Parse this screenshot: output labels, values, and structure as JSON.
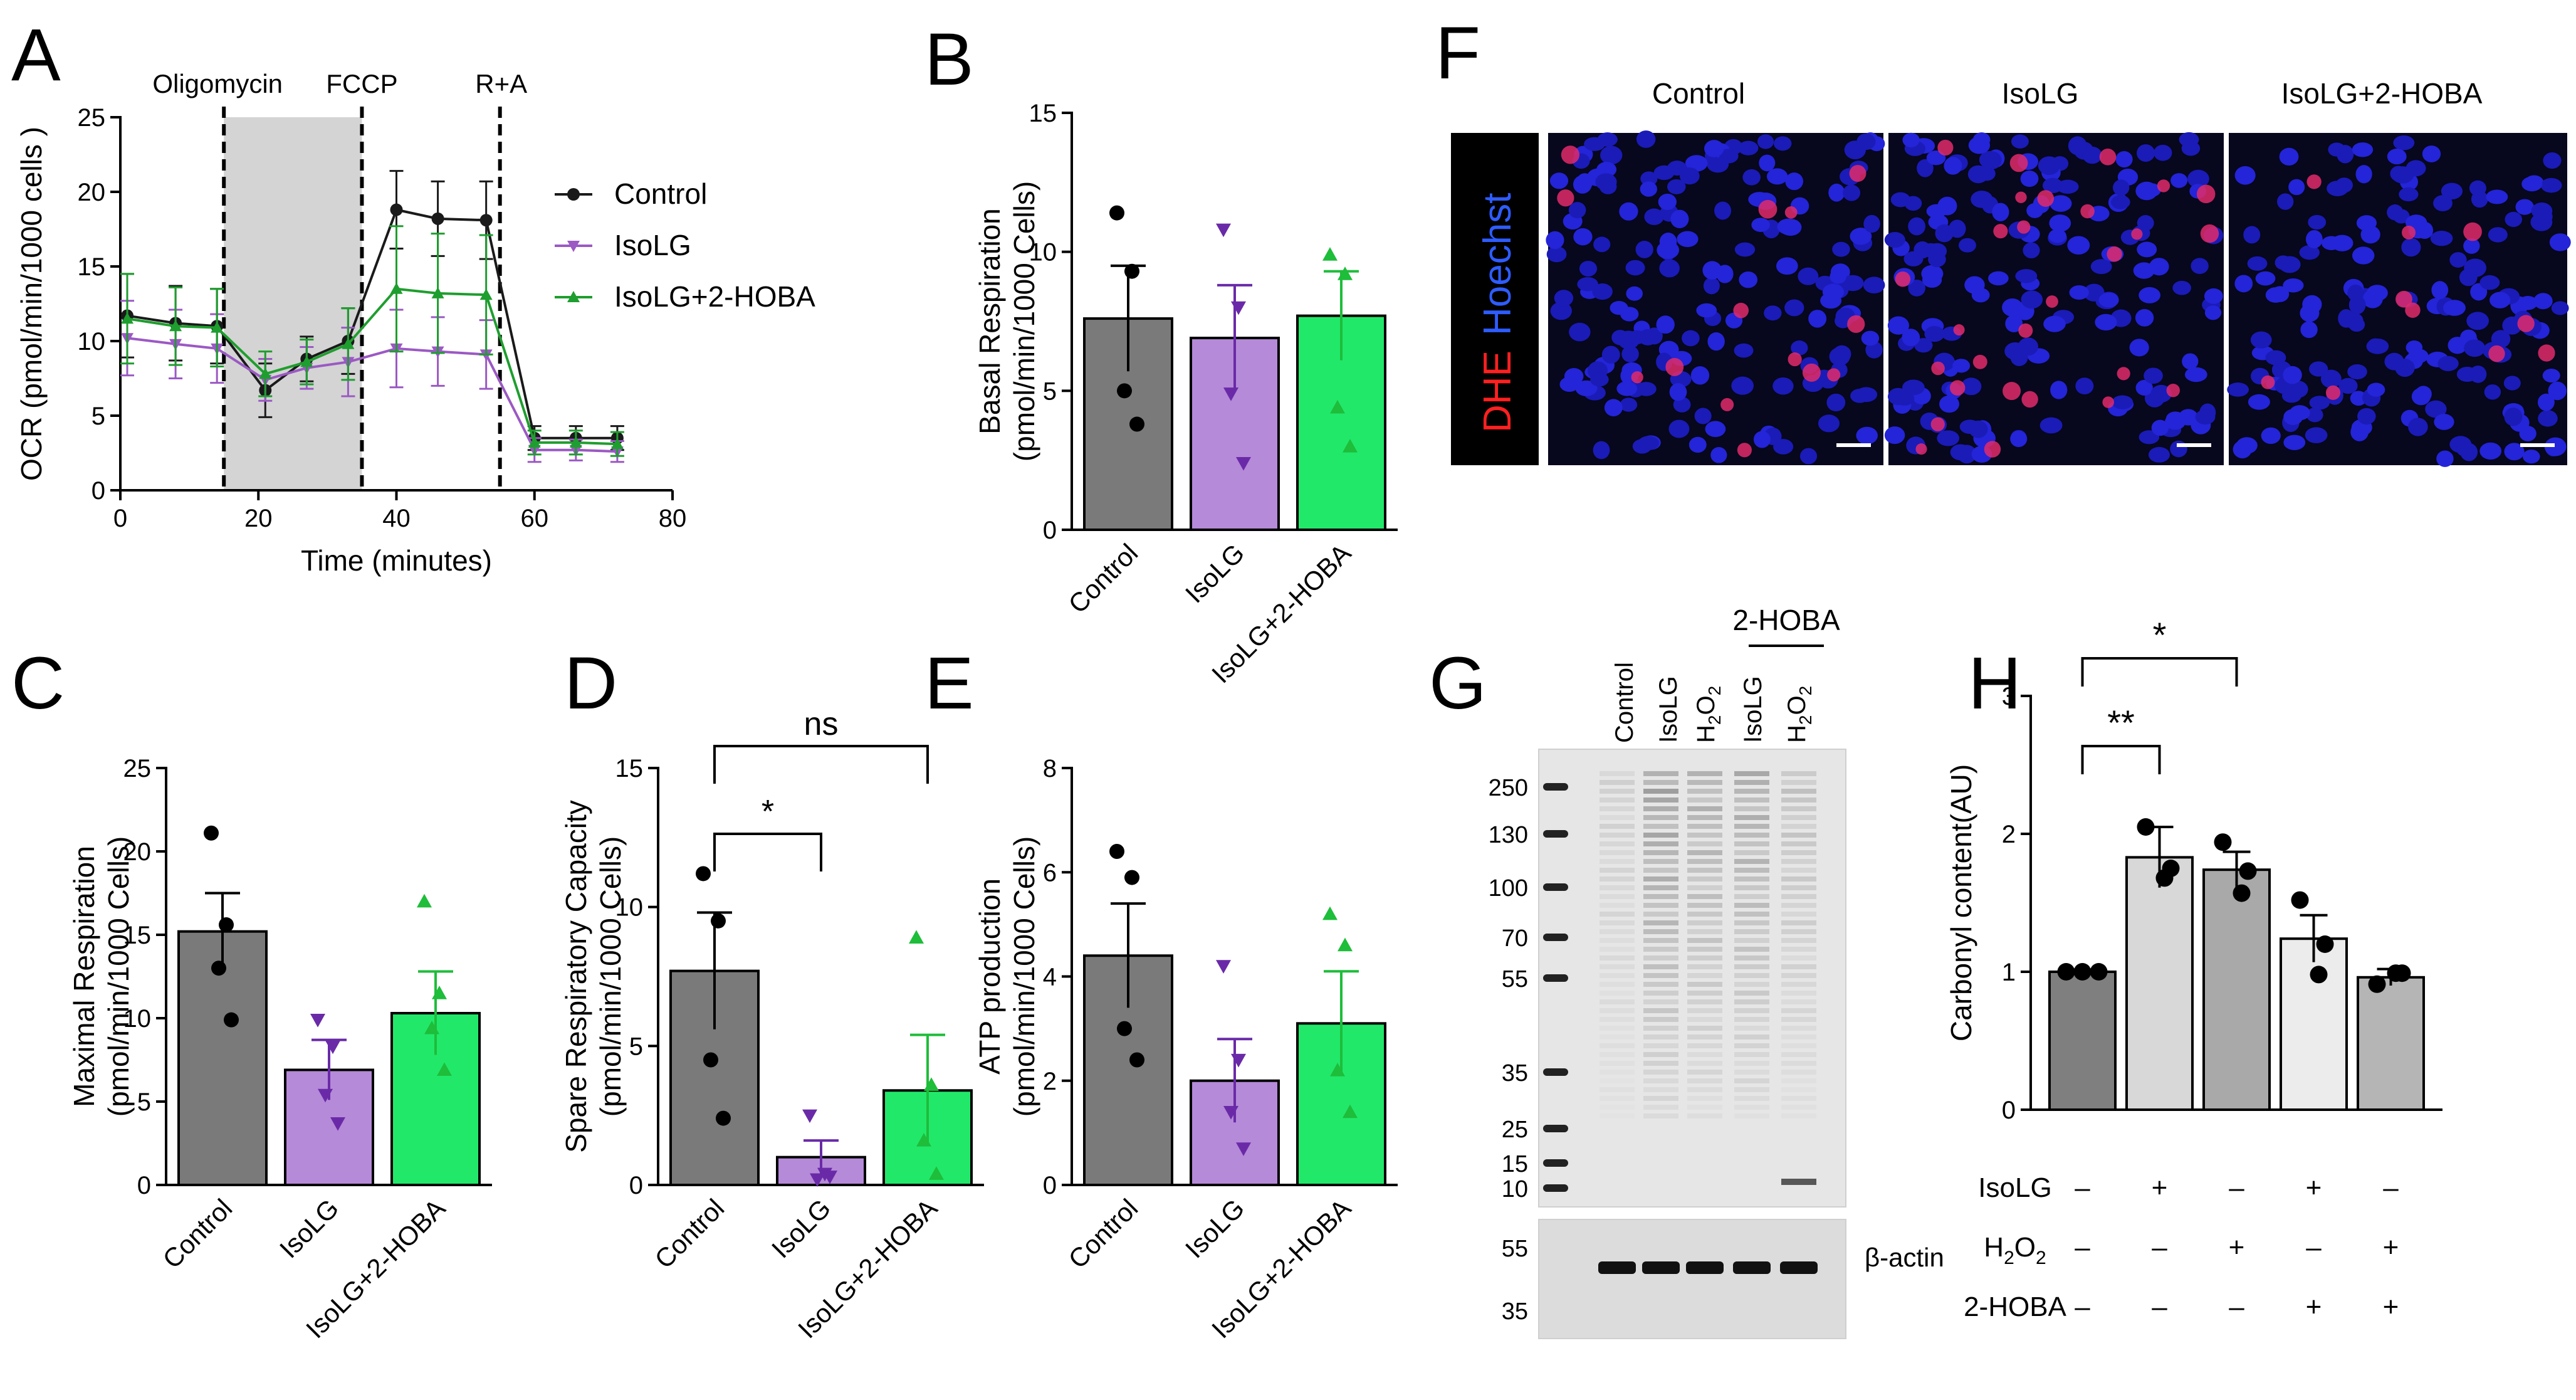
{
  "figure": {
    "panel_letters": [
      "A",
      "B",
      "C",
      "D",
      "E",
      "F",
      "G",
      "H"
    ]
  },
  "colors": {
    "control": "#1a1a1a",
    "isolg": "#9b59c4",
    "isolg_hoba": "#1e9e2e",
    "bar_control": "#7a7a7a",
    "bar_isolg": "#b58ad8",
    "bar_isolg_hoba": "#22e86a",
    "shade": "#d4d4d4"
  },
  "chart_data": [
    {
      "id": "A",
      "type": "line",
      "xlabel": "Time (minutes)",
      "ylabel": "OCR (pmol/min/1000 cells )",
      "xlim": [
        0,
        80
      ],
      "ylim": [
        0,
        25
      ],
      "xticks": [
        0,
        20,
        40,
        60,
        80
      ],
      "yticks": [
        0,
        5,
        10,
        15,
        20,
        25
      ],
      "injections": [
        {
          "label": "Oligomycin",
          "x": 15
        },
        {
          "label": "FCCP",
          "x": 35
        },
        {
          "label": "R+A",
          "x": 55
        }
      ],
      "shaded_range": [
        15,
        35
      ],
      "x": [
        1,
        8,
        14,
        21,
        27,
        33,
        40,
        46,
        53,
        60,
        66,
        72
      ],
      "series": [
        {
          "name": "Control",
          "values": [
            11.7,
            11.2,
            11.0,
            6.7,
            8.8,
            10.0,
            18.8,
            18.2,
            18.1,
            3.5,
            3.5,
            3.5
          ],
          "err": [
            2.8,
            2.5,
            2.5,
            1.8,
            1.5,
            2.2,
            2.6,
            2.5,
            2.6,
            0.8,
            0.8,
            0.8
          ]
        },
        {
          "name": "IsoLG",
          "values": [
            10.2,
            9.8,
            9.5,
            7.4,
            8.2,
            8.6,
            9.5,
            9.3,
            9.1,
            2.7,
            2.7,
            2.6
          ],
          "err": [
            2.5,
            2.3,
            2.3,
            1.4,
            1.4,
            2.3,
            2.6,
            2.3,
            2.3,
            0.8,
            0.7,
            0.7
          ]
        },
        {
          "name": "IsoLG+2-HOBA",
          "values": [
            11.5,
            11.0,
            10.9,
            7.8,
            8.6,
            9.8,
            13.5,
            13.2,
            13.1,
            3.2,
            3.2,
            3.1
          ],
          "err": [
            3.0,
            2.6,
            2.6,
            1.5,
            1.5,
            2.4,
            4.2,
            4.0,
            4.0,
            0.8,
            0.8,
            0.8
          ]
        }
      ],
      "legend": "right"
    },
    {
      "id": "B",
      "type": "bar",
      "ylabel": "Basal Respiration",
      "ylabel2": "(pmol/min/1000 Cells)",
      "ylim": [
        0,
        15
      ],
      "yticks": [
        0,
        5,
        10,
        15
      ],
      "categories": [
        "Control",
        "IsoLG",
        "IsoLG+2-HOBA"
      ],
      "values": [
        7.6,
        6.9,
        7.7
      ],
      "sem": [
        1.9,
        1.9,
        1.6
      ],
      "points": [
        [
          11.4,
          9.3,
          5.0,
          3.8
        ],
        [
          10.8,
          8.0,
          4.9,
          2.4
        ],
        [
          9.9,
          9.2,
          4.4,
          3.0
        ]
      ]
    },
    {
      "id": "C",
      "type": "bar",
      "ylabel": "Maximal Respiration",
      "ylabel2": "(pmol/min/1000 Cells)",
      "ylim": [
        0,
        25
      ],
      "yticks": [
        0,
        5,
        10,
        15,
        20,
        25
      ],
      "categories": [
        "Control",
        "IsoLG",
        "IsoLG+2-HOBA"
      ],
      "values": [
        15.2,
        6.9,
        10.3
      ],
      "sem": [
        2.3,
        1.8,
        2.5
      ],
      "points": [
        [
          21.1,
          15.6,
          13.0,
          9.9
        ],
        [
          9.9,
          8.3,
          5.4,
          3.7
        ],
        [
          17.0,
          11.5,
          9.4,
          6.9
        ]
      ]
    },
    {
      "id": "D",
      "type": "bar",
      "ylabel": "Spare Respiratory Capacity",
      "ylabel2": "(pmol/min/1000 Cells)",
      "ylim": [
        0,
        15
      ],
      "yticks": [
        0,
        5,
        10,
        15
      ],
      "categories": [
        "Control",
        "IsoLG",
        "IsoLG+2-HOBA"
      ],
      "values": [
        7.7,
        1.0,
        3.4
      ],
      "sem": [
        2.1,
        0.6,
        2.0
      ],
      "points": [
        [
          11.2,
          9.5,
          4.5,
          2.4
        ],
        [
          2.5,
          0.4,
          0.2,
          0.3
        ],
        [
          8.9,
          3.6,
          1.6,
          0.4
        ]
      ],
      "significance": [
        {
          "from": 0,
          "to": 1,
          "label": "*"
        },
        {
          "from": 0,
          "to": 2,
          "label": "ns"
        }
      ]
    },
    {
      "id": "E",
      "type": "bar",
      "ylabel": "ATP production",
      "ylabel2": "(pmol/min/1000 Cells)",
      "ylim": [
        0,
        8
      ],
      "yticks": [
        0,
        2,
        4,
        6,
        8
      ],
      "categories": [
        "Control",
        "IsoLG",
        "IsoLG+2-HOBA"
      ],
      "values": [
        4.4,
        2.0,
        3.1
      ],
      "sem": [
        1.0,
        0.8,
        1.0
      ],
      "points": [
        [
          6.4,
          5.9,
          3.0,
          2.4
        ],
        [
          4.2,
          2.4,
          1.4,
          0.7
        ],
        [
          5.2,
          4.6,
          2.2,
          1.4
        ]
      ]
    },
    {
      "id": "H",
      "type": "bar",
      "ylabel": "Carbonyl content(AU)",
      "ylim": [
        0,
        3
      ],
      "yticks": [
        0,
        1,
        2,
        3
      ],
      "values": [
        1.0,
        1.83,
        1.74,
        1.24,
        0.96
      ],
      "sem": [
        0.0,
        0.22,
        0.13,
        0.17,
        0.06
      ],
      "bar_colors": [
        "#7f7f7f",
        "#d8d8d8",
        "#a9a9a9",
        "#ececec",
        "#b5b5b5"
      ],
      "points": [
        [
          1.0,
          1.0,
          1.0
        ],
        [
          2.05,
          1.75,
          1.68
        ],
        [
          1.94,
          1.73,
          1.57
        ],
        [
          1.52,
          1.2,
          0.98
        ],
        [
          0.91,
          0.99,
          0.99
        ]
      ],
      "conditions": [
        {
          "label": "IsoLG",
          "marks": [
            "–",
            "+",
            "–",
            "+",
            "–"
          ]
        },
        {
          "label": "H2O2",
          "marks": [
            "–",
            "–",
            "+",
            "–",
            "+"
          ]
        },
        {
          "label": "2-HOBA",
          "marks": [
            "–",
            "–",
            "–",
            "+",
            "+"
          ]
        }
      ],
      "significance": [
        {
          "from": 0,
          "to": 1,
          "label": "**"
        },
        {
          "from": 0,
          "to": 2,
          "label": "*"
        }
      ]
    }
  ],
  "panel_f": {
    "columns": [
      "Control",
      "IsoLG",
      "IsoLG+2-HOBA"
    ],
    "stain_red": "DHE",
    "stain_blue": "Hoechst"
  },
  "panel_g": {
    "lane_labels": [
      "Control",
      "IsoLG",
      "H2O2",
      "IsoLG",
      "H2O2"
    ],
    "group_label": "2-HOBA",
    "markers_top": [
      "250",
      "130",
      "100",
      "70",
      "55",
      "35",
      "25",
      "15",
      "10"
    ],
    "markers_bottom": [
      "55",
      "35"
    ],
    "loading_label": "β-actin"
  }
}
